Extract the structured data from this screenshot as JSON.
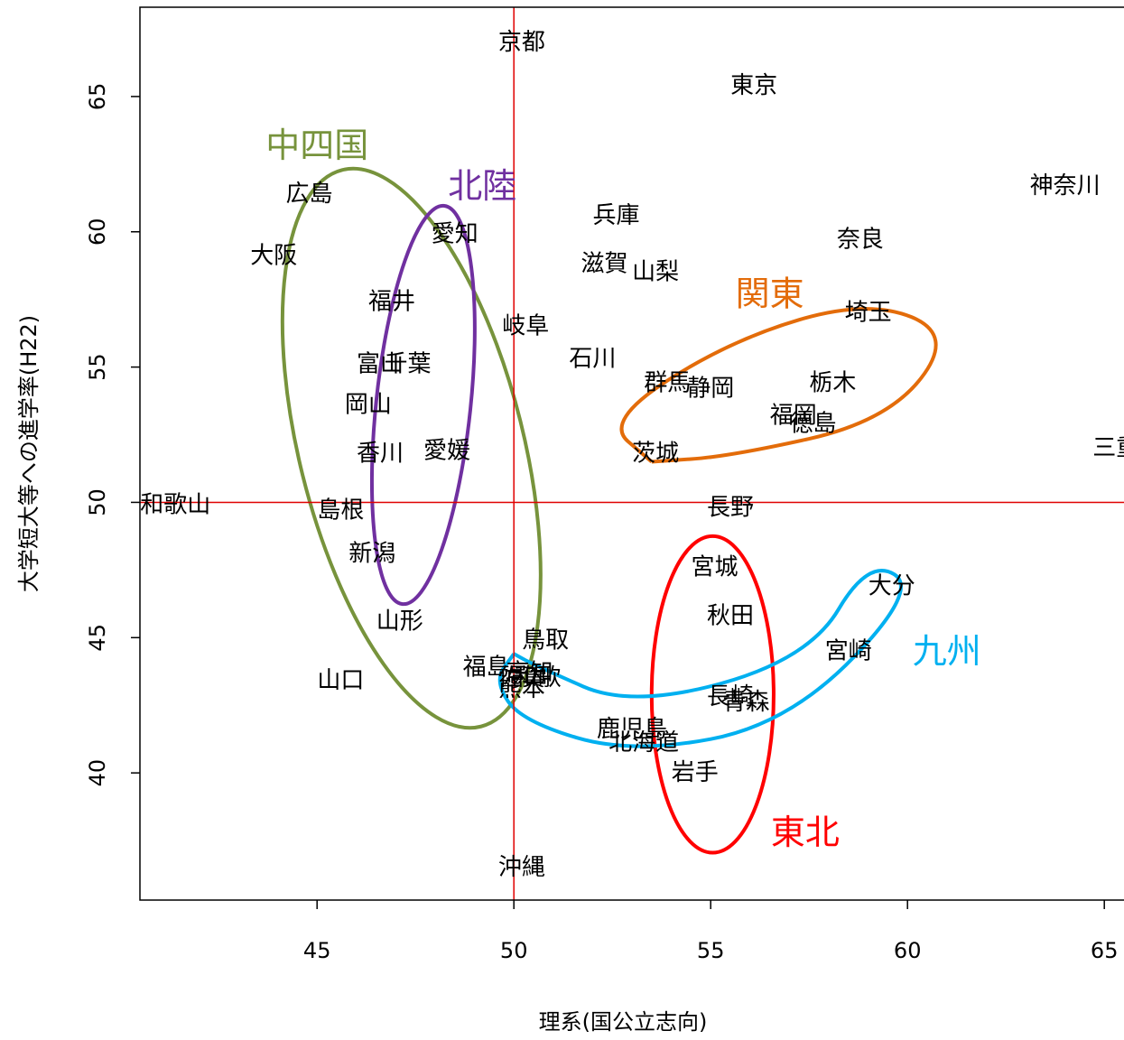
{
  "chart_data": {
    "type": "scatter",
    "xlabel": "理系(国公立志向)",
    "ylabel": "大学短大等への進学率(H22)",
    "xlim": [
      40.5,
      65.5
    ],
    "ylim": [
      35.3,
      68.3
    ],
    "xticks": [
      45,
      50,
      55,
      60,
      65
    ],
    "yticks": [
      40,
      45,
      50,
      55,
      60,
      65
    ],
    "reference_lines": {
      "x": 50,
      "y": 50,
      "color": "#e00000"
    },
    "points": [
      {
        "label": "京都",
        "x": 50.2,
        "y": 67.0
      },
      {
        "label": "東京",
        "x": 56.1,
        "y": 65.4
      },
      {
        "label": "神奈川",
        "x": 64.0,
        "y": 61.7
      },
      {
        "label": "広島",
        "x": 44.8,
        "y": 61.4
      },
      {
        "label": "兵庫",
        "x": 52.6,
        "y": 60.6
      },
      {
        "label": "愛知",
        "x": 48.5,
        "y": 59.9
      },
      {
        "label": "奈良",
        "x": 58.8,
        "y": 59.7
      },
      {
        "label": "大阪",
        "x": 43.9,
        "y": 59.1
      },
      {
        "label": "滋賀",
        "x": 52.3,
        "y": 58.8
      },
      {
        "label": "山梨",
        "x": 53.6,
        "y": 58.5
      },
      {
        "label": "福井",
        "x": 46.9,
        "y": 57.4
      },
      {
        "label": "埼玉",
        "x": 59.0,
        "y": 57.0
      },
      {
        "label": "岐阜",
        "x": 50.3,
        "y": 56.5
      },
      {
        "label": "石川",
        "x": 52.0,
        "y": 55.3
      },
      {
        "label": "富山",
        "x": 46.6,
        "y": 55.1
      },
      {
        "label": "千葉",
        "x": 47.3,
        "y": 55.1
      },
      {
        "label": "栃木",
        "x": 58.1,
        "y": 54.4
      },
      {
        "label": "群馬",
        "x": 53.9,
        "y": 54.4
      },
      {
        "label": "静岡",
        "x": 55.0,
        "y": 54.2
      },
      {
        "label": "岡山",
        "x": 46.3,
        "y": 53.6
      },
      {
        "label": "福岡",
        "x": 57.1,
        "y": 53.2
      },
      {
        "label": "徳島",
        "x": 57.6,
        "y": 52.9
      },
      {
        "label": "愛媛",
        "x": 48.3,
        "y": 51.9
      },
      {
        "label": "香川",
        "x": 46.6,
        "y": 51.8
      },
      {
        "label": "茨城",
        "x": 53.6,
        "y": 51.8
      },
      {
        "label": "三重",
        "x": 65.3,
        "y": 52.0
      },
      {
        "label": "和歌山",
        "x": 41.4,
        "y": 49.9
      },
      {
        "label": "島根",
        "x": 45.6,
        "y": 49.7
      },
      {
        "label": "長野",
        "x": 55.5,
        "y": 49.8
      },
      {
        "label": "新潟",
        "x": 46.4,
        "y": 48.1
      },
      {
        "label": "宮城",
        "x": 55.1,
        "y": 47.6
      },
      {
        "label": "大分",
        "x": 59.6,
        "y": 46.9
      },
      {
        "label": "秋田",
        "x": 55.5,
        "y": 45.8
      },
      {
        "label": "山形",
        "x": 47.1,
        "y": 45.6
      },
      {
        "label": "鳥取",
        "x": 50.8,
        "y": 44.9
      },
      {
        "label": "宮崎",
        "x": 58.5,
        "y": 44.5
      },
      {
        "label": "福島",
        "x": 49.3,
        "y": 43.9
      },
      {
        "label": "高知",
        "x": 50.4,
        "y": 43.7
      },
      {
        "label": "佐賀",
        "x": 50.2,
        "y": 43.5
      },
      {
        "label": "和歌",
        "x": 50.6,
        "y": 43.5
      },
      {
        "label": "熊本",
        "x": 50.2,
        "y": 43.1
      },
      {
        "label": "山口",
        "x": 45.6,
        "y": 43.4
      },
      {
        "label": "長崎",
        "x": 55.5,
        "y": 42.8
      },
      {
        "label": "青森",
        "x": 55.9,
        "y": 42.6
      },
      {
        "label": "鹿児島",
        "x": 53.0,
        "y": 41.6
      },
      {
        "label": "北海道",
        "x": 53.3,
        "y": 41.1
      },
      {
        "label": "岩手",
        "x": 54.6,
        "y": 40.0
      },
      {
        "label": "沖縄",
        "x": 50.2,
        "y": 36.5
      }
    ],
    "regions": [
      {
        "name": "中四国",
        "color": "#77933c"
      },
      {
        "name": "北陸",
        "color": "#7030a0"
      },
      {
        "name": "関東",
        "color": "#e36c0a"
      },
      {
        "name": "東北",
        "color": "#ff0000"
      },
      {
        "name": "九州",
        "color": "#00b0f0"
      }
    ]
  }
}
